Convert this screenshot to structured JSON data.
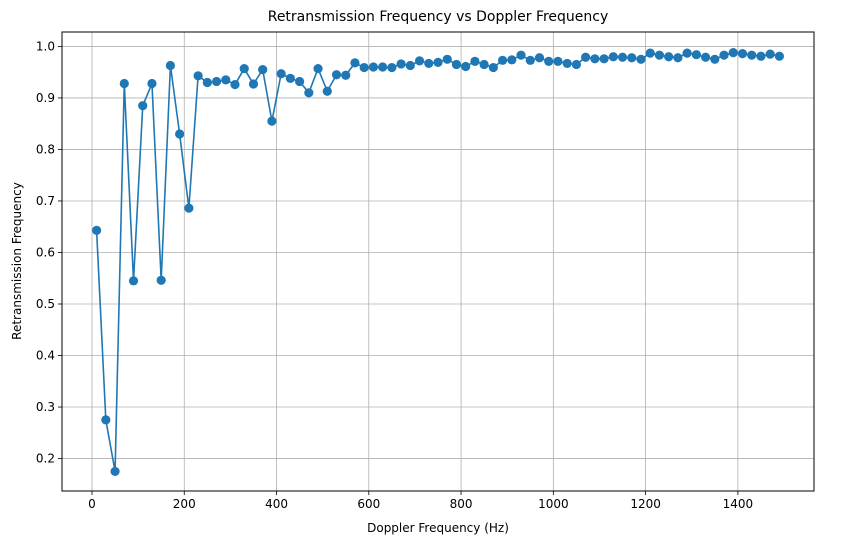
{
  "chart_data": {
    "type": "line",
    "title": "Retransmission Frequency vs Doppler Frequency",
    "xlabel": "Doppler Frequency (Hz)",
    "ylabel": "Retransmission Frequency",
    "xlim": [
      -65,
      1565
    ],
    "ylim": [
      0.137,
      1.028
    ],
    "xticks": [
      0,
      200,
      400,
      600,
      800,
      1000,
      1200,
      1400
    ],
    "yticks": [
      0.2,
      0.3,
      0.4,
      0.5,
      0.6,
      0.7,
      0.8,
      0.9,
      1.0
    ],
    "xtick_labels": [
      "0",
      "200",
      "400",
      "600",
      "800",
      "1000",
      "1200",
      "1400"
    ],
    "ytick_labels": [
      "0.2",
      "0.3",
      "0.4",
      "0.5",
      "0.6",
      "0.7",
      "0.8",
      "0.9",
      "1.0"
    ],
    "grid": true,
    "color": "#1f77b4",
    "marker": "circle",
    "series": [
      {
        "x": [
          10,
          30,
          50,
          70,
          90,
          110,
          130,
          150,
          170,
          190,
          210,
          230,
          250,
          270,
          290,
          310,
          330,
          350,
          370,
          390,
          410,
          430,
          450,
          470,
          490,
          510,
          530,
          550,
          570,
          590,
          610,
          630,
          650,
          670,
          690,
          710,
          730,
          750,
          770,
          790,
          810,
          830,
          850,
          870,
          890,
          910,
          930,
          950,
          970,
          990,
          1010,
          1030,
          1050,
          1070,
          1090,
          1110,
          1130,
          1150,
          1170,
          1190,
          1210,
          1230,
          1250,
          1270,
          1290,
          1310,
          1330,
          1350,
          1370,
          1390,
          1410,
          1430,
          1450,
          1470,
          1490
        ],
        "values": [
          0.643,
          0.275,
          0.175,
          0.928,
          0.545,
          0.885,
          0.928,
          0.546,
          0.963,
          0.83,
          0.686,
          0.943,
          0.93,
          0.932,
          0.935,
          0.926,
          0.957,
          0.927,
          0.955,
          0.855,
          0.947,
          0.938,
          0.932,
          0.91,
          0.957,
          0.913,
          0.945,
          0.944,
          0.968,
          0.959,
          0.96,
          0.96,
          0.959,
          0.966,
          0.963,
          0.972,
          0.967,
          0.969,
          0.975,
          0.965,
          0.961,
          0.971,
          0.965,
          0.959,
          0.973,
          0.974,
          0.983,
          0.973,
          0.978,
          0.971,
          0.971,
          0.967,
          0.965,
          0.979,
          0.976,
          0.976,
          0.98,
          0.979,
          0.978,
          0.975,
          0.987,
          0.983,
          0.98,
          0.978,
          0.987,
          0.984,
          0.979,
          0.975,
          0.983,
          0.988,
          0.986,
          0.983,
          0.981,
          0.985,
          0.981
        ]
      }
    ]
  }
}
